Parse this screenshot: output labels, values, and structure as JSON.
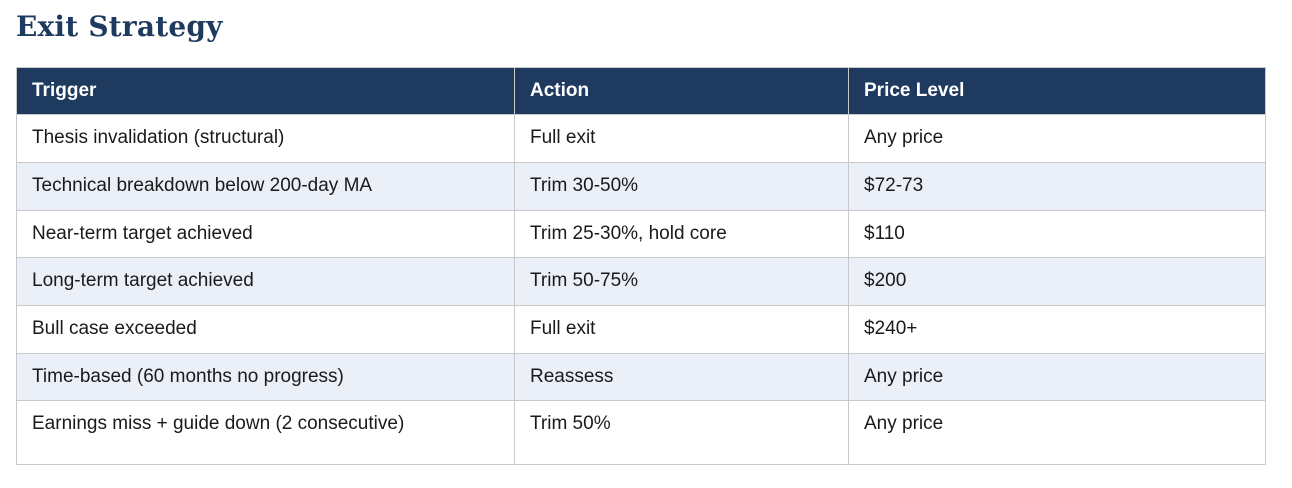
{
  "page": {
    "title": "Exit Strategy"
  },
  "table": {
    "columns": [
      "Trigger",
      "Action",
      "Price Level"
    ],
    "rows": [
      {
        "trigger": "Thesis invalidation (structural)",
        "action": "Full exit",
        "price": "Any price"
      },
      {
        "trigger": "Technical breakdown below 200-day MA",
        "action": "Trim 30-50%",
        "price": "$72-73"
      },
      {
        "trigger": "Near-term target achieved",
        "action": "Trim 25-30%, hold core",
        "price": "$110"
      },
      {
        "trigger": "Long-term target achieved",
        "action": "Trim 50-75%",
        "price": "$200"
      },
      {
        "trigger": "Bull case exceeded",
        "action": "Full exit",
        "price": "$240+"
      },
      {
        "trigger": "Time-based (60 months no progress)",
        "action": "Reassess",
        "price": "Any price"
      },
      {
        "trigger": "Earnings miss + guide down (2 consecutive)",
        "action": "Trim 50%",
        "price": "Any price"
      }
    ],
    "colors": {
      "title_color": "#1e3a5f",
      "header_bg": "#1e3a5f",
      "header_text": "#ffffff",
      "row_bg": "#ffffff",
      "row_alt_bg": "#eaeff8",
      "border": "#c9c9c9",
      "body_text": "#1a1a1a"
    }
  }
}
